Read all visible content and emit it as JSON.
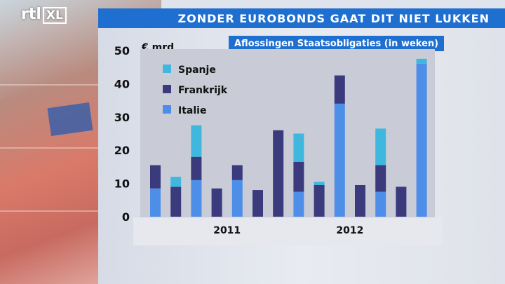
{
  "header": {
    "channel_logo": "rtl",
    "channel_logo_box": "XL",
    "title": "ZONDER EUROBONDS GAAT DIT NIET LUKKEN"
  },
  "colors": {
    "title_bar": "#1f6fd1",
    "spanje": "#3fb7de",
    "frankrijk": "#3a3a7c",
    "italie": "#4d8ee8",
    "plot_bg": "#c9ccd6"
  },
  "chart_data": {
    "type": "bar",
    "stacked": true,
    "title": "Aflossingen Staatsobligaties (in weken)",
    "ylabel": "€ mrd",
    "ylim": [
      0,
      50
    ],
    "yticks": [
      "50",
      "40",
      "30",
      "20",
      "10",
      "0"
    ],
    "x_labels": [
      {
        "label": "2011",
        "after_bar": 3
      },
      {
        "label": "2012",
        "after_bar": 9
      }
    ],
    "legend_position": "top-left",
    "series": [
      {
        "name": "Italie",
        "color_key": "italie",
        "values": [
          8.5,
          0,
          11,
          0,
          11,
          0,
          0,
          7.5,
          0,
          34,
          0,
          7.5,
          0,
          46
        ]
      },
      {
        "name": "Frankrijk",
        "color_key": "frankrijk",
        "values": [
          7,
          9,
          7,
          8.5,
          4.5,
          8,
          26,
          9,
          9.5,
          8.5,
          9.5,
          8,
          9,
          0
        ]
      },
      {
        "name": "Spanje",
        "color_key": "spanje",
        "values": [
          0,
          3,
          9.5,
          0,
          0,
          0,
          0,
          8.5,
          1,
          0,
          0,
          11,
          0,
          1.5
        ]
      }
    ],
    "legend": [
      "Spanje",
      "Frankrijk",
      "Italie"
    ]
  }
}
